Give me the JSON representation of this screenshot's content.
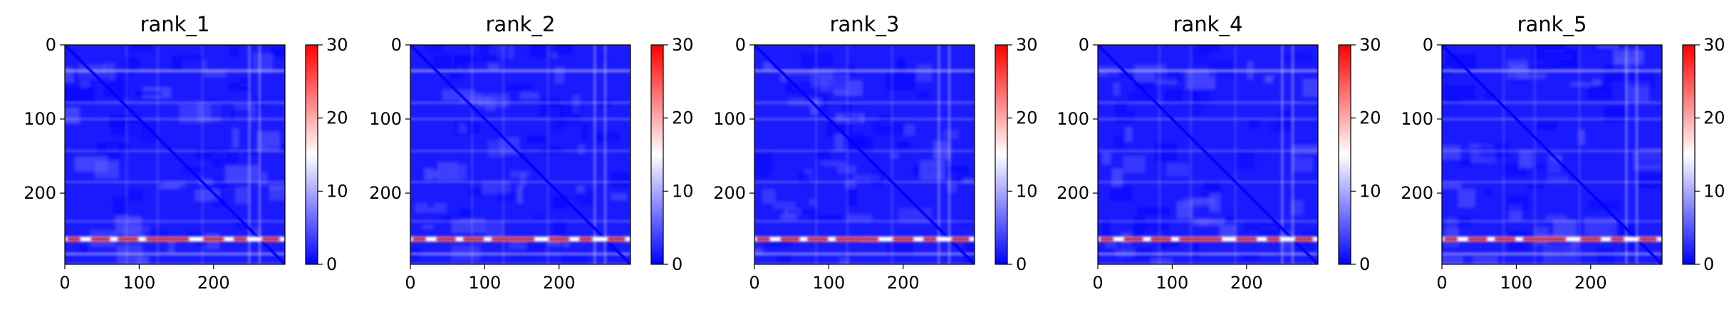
{
  "chart_data": [
    {
      "type": "heatmap",
      "title": "rank_1",
      "x_ticks": [
        0,
        100,
        200
      ],
      "y_ticks": [
        0,
        100,
        200
      ],
      "xlim": [
        0,
        296
      ],
      "ylim": [
        296,
        0
      ],
      "colorbar": {
        "ticks": [
          0,
          10,
          20,
          30
        ],
        "range": [
          0,
          30
        ],
        "colormap": "bwr"
      },
      "features": {
        "diagonal": "low (blue) along x = y",
        "bright_row_y": 262,
        "bright_row_value": 30,
        "bright_row_x_range": [
          0,
          296
        ]
      }
    },
    {
      "type": "heatmap",
      "title": "rank_2",
      "x_ticks": [
        0,
        100,
        200
      ],
      "y_ticks": [
        0,
        100,
        200
      ],
      "xlim": [
        0,
        296
      ],
      "ylim": [
        296,
        0
      ],
      "colorbar": {
        "ticks": [
          0,
          10,
          20,
          30
        ],
        "range": [
          0,
          30
        ],
        "colormap": "bwr"
      },
      "features": {
        "diagonal": "low (blue) along x = y",
        "bright_row_y": 262,
        "bright_row_value": 30,
        "bright_row_x_range": [
          0,
          296
        ]
      }
    },
    {
      "type": "heatmap",
      "title": "rank_3",
      "x_ticks": [
        0,
        100,
        200
      ],
      "y_ticks": [
        0,
        100,
        200
      ],
      "xlim": [
        0,
        296
      ],
      "ylim": [
        296,
        0
      ],
      "colorbar": {
        "ticks": [
          0,
          10,
          20,
          30
        ],
        "range": [
          0,
          30
        ],
        "colormap": "bwr"
      },
      "features": {
        "diagonal": "low (blue) along x = y",
        "bright_row_y": 262,
        "bright_row_value": 30,
        "bright_row_x_range": [
          0,
          296
        ]
      }
    },
    {
      "type": "heatmap",
      "title": "rank_4",
      "x_ticks": [
        0,
        100,
        200
      ],
      "y_ticks": [
        0,
        100,
        200
      ],
      "xlim": [
        0,
        296
      ],
      "ylim": [
        296,
        0
      ],
      "colorbar": {
        "ticks": [
          0,
          10,
          20,
          30
        ],
        "range": [
          0,
          30
        ],
        "colormap": "bwr"
      },
      "features": {
        "diagonal": "low (blue) along x = y",
        "bright_row_y": 262,
        "bright_row_value": 30,
        "bright_row_x_range": [
          0,
          296
        ]
      }
    },
    {
      "type": "heatmap",
      "title": "rank_5",
      "x_ticks": [
        0,
        100,
        200
      ],
      "y_ticks": [
        0,
        100,
        200
      ],
      "xlim": [
        0,
        296
      ],
      "ylim": [
        296,
        0
      ],
      "colorbar": {
        "ticks": [
          0,
          10,
          20,
          30
        ],
        "range": [
          0,
          30
        ],
        "colormap": "bwr"
      },
      "features": {
        "diagonal": "low (blue) along x = y",
        "bright_row_y": 262,
        "bright_row_value": 30,
        "bright_row_x_range": [
          0,
          296
        ]
      }
    }
  ],
  "colors": {
    "low": "#0000ff",
    "mid": "#ffffff",
    "high": "#ff0000"
  }
}
